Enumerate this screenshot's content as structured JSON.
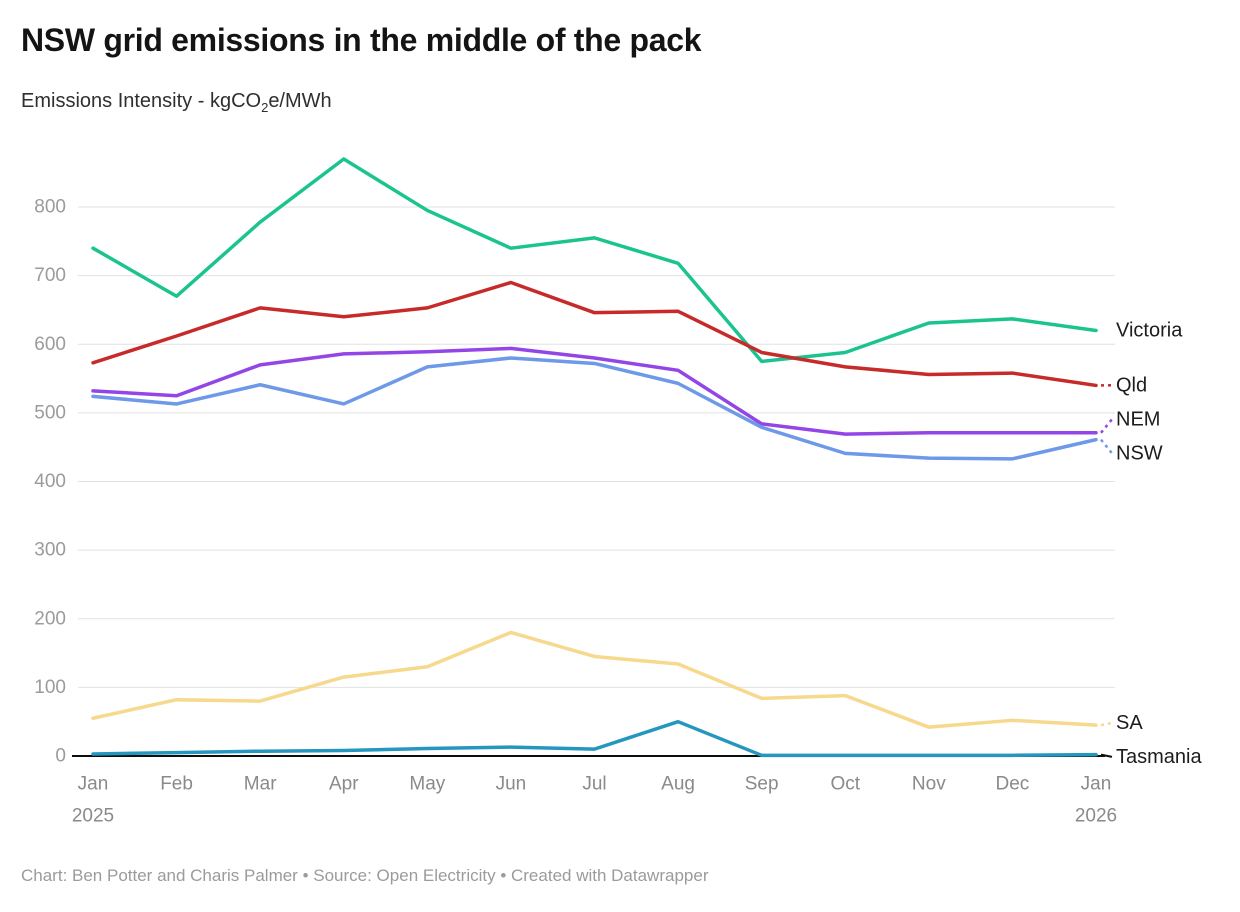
{
  "header": {
    "title": "NSW grid emissions in the middle of the pack",
    "subtitle": {
      "prefix": "Emissions Intensity - kgCO",
      "sub": "2",
      "suffix": "e/MWh"
    }
  },
  "footer": {
    "text": "Chart: Ben Potter and Charis Palmer • Source: Open Electricity • Created with Datawrapper"
  },
  "chart_data": {
    "type": "line",
    "title": "NSW grid emissions in the middle of the pack",
    "subtitle": "Emissions Intensity - kgCO2e/MWh",
    "x_tick_labels": [
      "Jan",
      "Feb",
      "Mar",
      "Apr",
      "May",
      "Jun",
      "Jul",
      "Aug",
      "Sep",
      "Oct",
      "Nov",
      "Dec",
      "Jan"
    ],
    "x_year_labels": [
      {
        "tick_index": 0,
        "label": "2025"
      },
      {
        "tick_index": 12,
        "label": "2026"
      }
    ],
    "yticks": [
      0,
      100,
      200,
      300,
      400,
      500,
      600,
      700,
      800
    ],
    "ylim": [
      0,
      880
    ],
    "grid": "horizontal",
    "legend_position": "right-edge-direct-labels",
    "series": [
      {
        "name": "Victoria",
        "color": "#1bc48f",
        "label_connector": "none",
        "values": [
          740,
          670,
          778,
          870,
          795,
          740,
          755,
          718,
          575,
          588,
          631,
          637,
          620
        ]
      },
      {
        "name": "Qld",
        "color": "#c62b29",
        "label_connector": "dashed",
        "values": [
          573,
          612,
          653,
          640,
          653,
          690,
          646,
          648,
          588,
          567,
          556,
          558,
          540
        ]
      },
      {
        "name": "NEM",
        "color": "#9345e6",
        "label_connector": "dashed",
        "values": [
          532,
          525,
          570,
          586,
          589,
          594,
          580,
          562,
          484,
          469,
          471,
          471,
          471
        ]
      },
      {
        "name": "NSW",
        "color": "#6d99e8",
        "label_connector": "dashed",
        "values": [
          524,
          513,
          541,
          513,
          567,
          580,
          572,
          543,
          479,
          441,
          434,
          433,
          461
        ]
      },
      {
        "name": "SA",
        "color": "#f7d98d",
        "label_connector": "dashed",
        "values": [
          55,
          82,
          80,
          115,
          130,
          180,
          145,
          134,
          84,
          88,
          42,
          52,
          45
        ]
      },
      {
        "name": "Tasmania",
        "color": "#2596be",
        "label_connector": "solid-black",
        "values": [
          3,
          5,
          7,
          8,
          11,
          13,
          10,
          50,
          1,
          1,
          1,
          1,
          2
        ]
      }
    ]
  }
}
